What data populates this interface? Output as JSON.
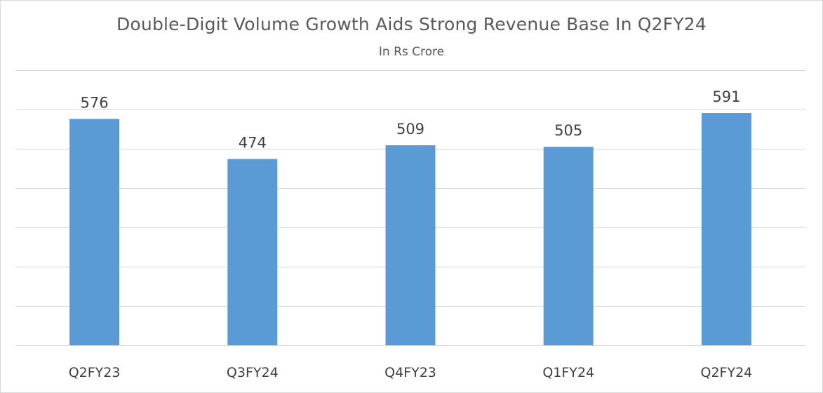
{
  "chart_data": {
    "type": "bar",
    "title": "Double-Digit Volume Growth Aids Strong Revenue Base In Q2FY24",
    "subtitle": "In Rs Crore",
    "categories": [
      "Q2FY23",
      "Q3FY24",
      "Q4FY23",
      "Q1FY24",
      "Q2FY24"
    ],
    "values": [
      576,
      474,
      509,
      505,
      591
    ],
    "data_labels": [
      "576",
      "474",
      "509",
      "505",
      "591"
    ],
    "ylim": [
      0,
      700
    ],
    "ygrid_step": 100,
    "grid": true,
    "bar_color": "#5b9bd5",
    "grid_color": "#d9d9d9",
    "legend": "none"
  }
}
